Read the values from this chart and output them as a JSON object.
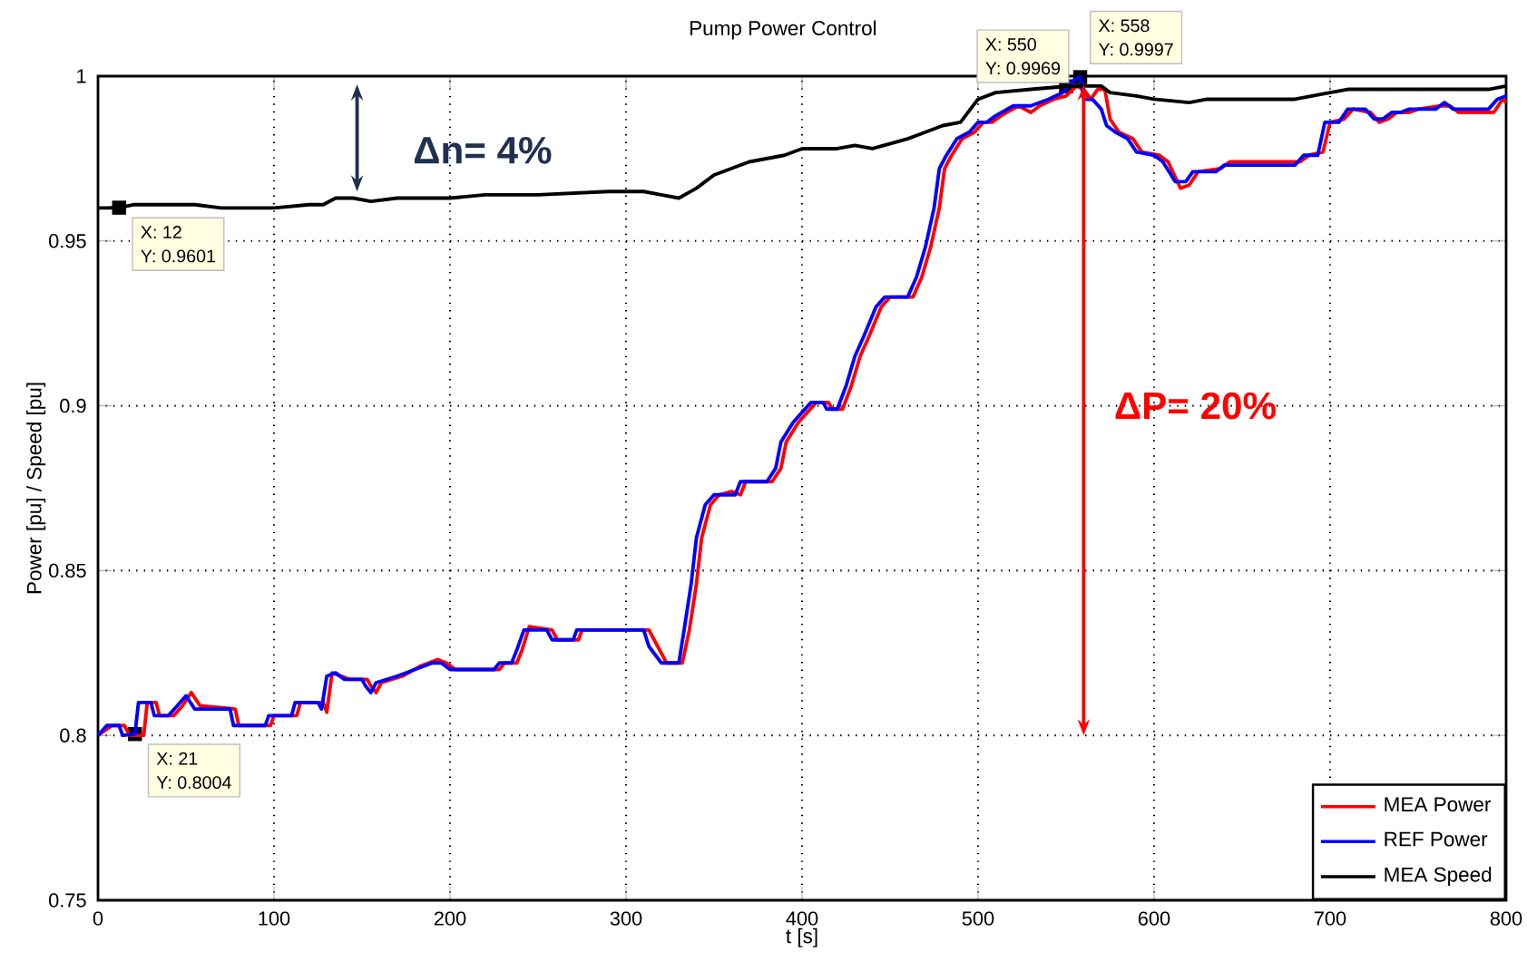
{
  "chart_data": {
    "type": "line",
    "title": "Pump Power Control",
    "xlabel": "t [s]",
    "ylabel": "Power [pu]  / Speed [pu]",
    "xlim": [
      0,
      800
    ],
    "ylim": [
      0.75,
      1
    ],
    "xticks": [
      0,
      100,
      200,
      300,
      400,
      500,
      600,
      700,
      800
    ],
    "yticks": [
      0.75,
      0.8,
      0.85,
      0.9,
      0.95,
      1
    ],
    "grid": true,
    "legend": "bottom right",
    "line_style": "solid",
    "marker": "none",
    "series": [
      {
        "name": "MEA Power",
        "color": "#ff0000",
        "x": [
          0,
          8,
          15,
          18,
          26,
          28,
          33,
          35,
          43,
          48,
          53,
          58,
          78,
          80,
          98,
          100,
          113,
          115,
          128,
          130,
          133,
          138,
          143,
          153,
          155,
          158,
          161,
          173,
          183,
          193,
          198,
          203,
          228,
          231,
          238,
          241,
          245,
          258,
          261,
          273,
          275,
          313,
          318,
          323,
          332,
          336,
          340,
          343,
          348,
          353,
          360,
          365,
          368,
          383,
          388,
          391,
          398,
          403,
          408,
          415,
          417,
          423,
          428,
          433,
          438,
          445,
          450,
          463,
          468,
          473,
          478,
          481,
          485,
          491,
          498,
          503,
          508,
          513,
          523,
          530,
          535,
          543,
          550,
          556,
          560,
          564,
          568,
          572,
          575,
          580,
          588,
          593,
          603,
          608,
          615,
          620,
          625,
          638,
          643,
          683,
          688,
          696,
          700,
          708,
          713,
          723,
          728,
          733,
          738,
          745,
          750,
          763,
          768,
          773,
          793,
          798,
          800
        ],
        "values": [
          0.8,
          0.803,
          0.803,
          0.8,
          0.8,
          0.81,
          0.81,
          0.806,
          0.806,
          0.809,
          0.813,
          0.809,
          0.808,
          0.803,
          0.803,
          0.806,
          0.806,
          0.81,
          0.81,
          0.807,
          0.819,
          0.818,
          0.817,
          0.817,
          0.815,
          0.813,
          0.816,
          0.818,
          0.821,
          0.823,
          0.822,
          0.82,
          0.82,
          0.822,
          0.822,
          0.826,
          0.833,
          0.832,
          0.829,
          0.829,
          0.832,
          0.832,
          0.827,
          0.822,
          0.822,
          0.832,
          0.846,
          0.86,
          0.87,
          0.873,
          0.874,
          0.873,
          0.877,
          0.877,
          0.881,
          0.889,
          0.895,
          0.898,
          0.901,
          0.901,
          0.899,
          0.899,
          0.906,
          0.915,
          0.921,
          0.93,
          0.933,
          0.933,
          0.939,
          0.948,
          0.96,
          0.972,
          0.976,
          0.981,
          0.983,
          0.986,
          0.986,
          0.988,
          0.991,
          0.989,
          0.991,
          0.993,
          0.994,
          0.997,
          0.996,
          0.993,
          0.996,
          0.996,
          0.987,
          0.983,
          0.981,
          0.977,
          0.976,
          0.974,
          0.966,
          0.967,
          0.971,
          0.972,
          0.974,
          0.974,
          0.976,
          0.977,
          0.986,
          0.987,
          0.99,
          0.989,
          0.986,
          0.987,
          0.989,
          0.989,
          0.99,
          0.991,
          0.991,
          0.989,
          0.989,
          0.993,
          0.992
        ]
      },
      {
        "name": "REF Power",
        "color": "#0000ff",
        "x": [
          0,
          5,
          12,
          14,
          21,
          23,
          30,
          32,
          40,
          45,
          50,
          55,
          75,
          77,
          95,
          97,
          110,
          112,
          125,
          127,
          130,
          135,
          140,
          150,
          152,
          155,
          158,
          170,
          180,
          190,
          195,
          200,
          225,
          228,
          235,
          238,
          242,
          255,
          258,
          270,
          272,
          310,
          313,
          320,
          330,
          333,
          337,
          340,
          345,
          350,
          362,
          365,
          380,
          385,
          388,
          395,
          400,
          405,
          412,
          414,
          420,
          425,
          430,
          435,
          442,
          447,
          460,
          465,
          470,
          475,
          478,
          482,
          488,
          495,
          500,
          505,
          510,
          520,
          530,
          540,
          548,
          555,
          558,
          560,
          565,
          570,
          573,
          578,
          585,
          590,
          600,
          605,
          612,
          618,
          622,
          635,
          640,
          680,
          685,
          693,
          697,
          705,
          710,
          720,
          725,
          730,
          735,
          740,
          745,
          760,
          765,
          770,
          790,
          795,
          800
        ],
        "values": [
          0.8,
          0.803,
          0.803,
          0.8,
          0.8004,
          0.81,
          0.81,
          0.806,
          0.806,
          0.809,
          0.812,
          0.808,
          0.808,
          0.803,
          0.803,
          0.806,
          0.806,
          0.81,
          0.81,
          0.808,
          0.818,
          0.819,
          0.817,
          0.817,
          0.815,
          0.813,
          0.816,
          0.818,
          0.82,
          0.822,
          0.822,
          0.82,
          0.82,
          0.822,
          0.822,
          0.826,
          0.832,
          0.832,
          0.829,
          0.829,
          0.832,
          0.832,
          0.827,
          0.822,
          0.822,
          0.832,
          0.846,
          0.86,
          0.87,
          0.873,
          0.873,
          0.877,
          0.877,
          0.881,
          0.889,
          0.895,
          0.898,
          0.901,
          0.901,
          0.899,
          0.899,
          0.906,
          0.915,
          0.921,
          0.93,
          0.933,
          0.933,
          0.939,
          0.948,
          0.96,
          0.972,
          0.976,
          0.981,
          0.983,
          0.986,
          0.986,
          0.988,
          0.991,
          0.991,
          0.993,
          0.995,
          0.999,
          0.9997,
          0.993,
          0.993,
          0.99,
          0.985,
          0.983,
          0.981,
          0.977,
          0.976,
          0.974,
          0.968,
          0.968,
          0.971,
          0.971,
          0.973,
          0.973,
          0.976,
          0.976,
          0.986,
          0.986,
          0.99,
          0.99,
          0.987,
          0.987,
          0.989,
          0.989,
          0.99,
          0.99,
          0.992,
          0.99,
          0.99,
          0.993,
          0.994
        ]
      },
      {
        "name": "MEA Speed",
        "color": "#000000",
        "x": [
          0,
          5,
          12,
          20,
          30,
          40,
          55,
          70,
          85,
          100,
          120,
          128,
          135,
          145,
          155,
          170,
          200,
          220,
          250,
          290,
          310,
          320,
          330,
          340,
          350,
          370,
          390,
          400,
          420,
          430,
          440,
          460,
          480,
          490,
          500,
          510,
          530,
          550,
          560,
          570,
          575,
          590,
          600,
          620,
          630,
          680,
          700,
          710,
          740,
          790,
          800
        ],
        "values": [
          0.96,
          0.96,
          0.9601,
          0.961,
          0.961,
          0.961,
          0.961,
          0.96,
          0.96,
          0.96,
          0.961,
          0.961,
          0.963,
          0.963,
          0.962,
          0.963,
          0.963,
          0.964,
          0.964,
          0.965,
          0.965,
          0.964,
          0.963,
          0.966,
          0.97,
          0.974,
          0.976,
          0.978,
          0.978,
          0.979,
          0.978,
          0.981,
          0.985,
          0.986,
          0.993,
          0.995,
          0.996,
          0.9969,
          0.997,
          0.997,
          0.995,
          0.994,
          0.993,
          0.992,
          0.993,
          0.993,
          0.995,
          0.996,
          0.996,
          0.996,
          0.997
        ]
      }
    ],
    "annotations": [
      {
        "text": "X: 12",
        "x": 12,
        "y": 0.9601
      },
      {
        "text": "Y: 0.9601",
        "x": 12,
        "y": 0.9601
      },
      {
        "text": "X: 21",
        "x": 21,
        "y": 0.8004
      },
      {
        "text": "Y: 0.8004",
        "x": 21,
        "y": 0.8004
      },
      {
        "text": "X: 550",
        "x": 550,
        "y": 0.9969
      },
      {
        "text": "Y: 0.9969",
        "x": 550,
        "y": 0.9969
      },
      {
        "text": "X: 558",
        "x": 558,
        "y": 0.9997
      },
      {
        "text": "Y: 0.9997",
        "x": 558,
        "y": 0.9997
      },
      "Δn= 4%",
      "ΔP= 20%"
    ]
  }
}
